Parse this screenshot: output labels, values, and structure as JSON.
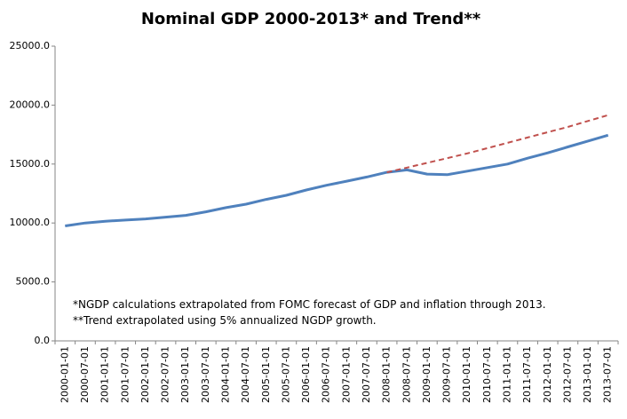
{
  "chart_data": {
    "type": "line",
    "title": "Nominal GDP 2000-2013* and Trend**",
    "annotations": [
      "*NGDP calculations extrapolated from FOMC forecast of GDP and inflation through 2013.",
      "**Trend extrapolated using 5% annualized NGDP growth."
    ],
    "categories": [
      "2000-01-01",
      "2000-07-01",
      "2001-01-01",
      "2001-07-01",
      "2002-01-01",
      "2002-07-01",
      "2003-01-01",
      "2003-07-01",
      "2004-01-01",
      "2004-07-01",
      "2005-01-01",
      "2005-07-01",
      "2006-01-01",
      "2006-07-01",
      "2007-01-01",
      "2007-07-01",
      "2008-01-01",
      "2008-07-01",
      "2009-01-01",
      "2009-07-01",
      "2010-01-01",
      "2010-07-01",
      "2011-01-01",
      "2011-07-01",
      "2012-01-01",
      "2012-07-01",
      "2013-01-01",
      "2013-07-01"
    ],
    "series": [
      {
        "name": "Nominal GDP",
        "color": "#4f81bd",
        "dash": false,
        "values": [
          9750,
          10000,
          10150,
          10250,
          10350,
          10500,
          10650,
          10950,
          11300,
          11600,
          12000,
          12350,
          12800,
          13200,
          13550,
          13900,
          14300,
          14500,
          14150,
          14100,
          14400,
          14700,
          15000,
          15500,
          15950,
          16450,
          16950,
          17450
        ]
      },
      {
        "name": "Trend",
        "color": "#c0504d",
        "dash": true,
        "values": [
          null,
          null,
          null,
          null,
          null,
          null,
          null,
          null,
          null,
          null,
          null,
          null,
          null,
          null,
          null,
          null,
          14300,
          14700,
          15100,
          15500,
          15900,
          16350,
          16800,
          17250,
          17700,
          18150,
          18650,
          19150
        ]
      }
    ],
    "ylim": [
      0,
      25000
    ],
    "yticks": [
      {
        "value": 0,
        "label": "0.0"
      },
      {
        "value": 5000,
        "label": "5000.0"
      },
      {
        "value": 10000,
        "label": "10000.0"
      },
      {
        "value": 15000,
        "label": "15000.0"
      },
      {
        "value": 20000,
        "label": "20000.0"
      },
      {
        "value": 25000,
        "label": "25000.0"
      }
    ],
    "grid": false
  }
}
